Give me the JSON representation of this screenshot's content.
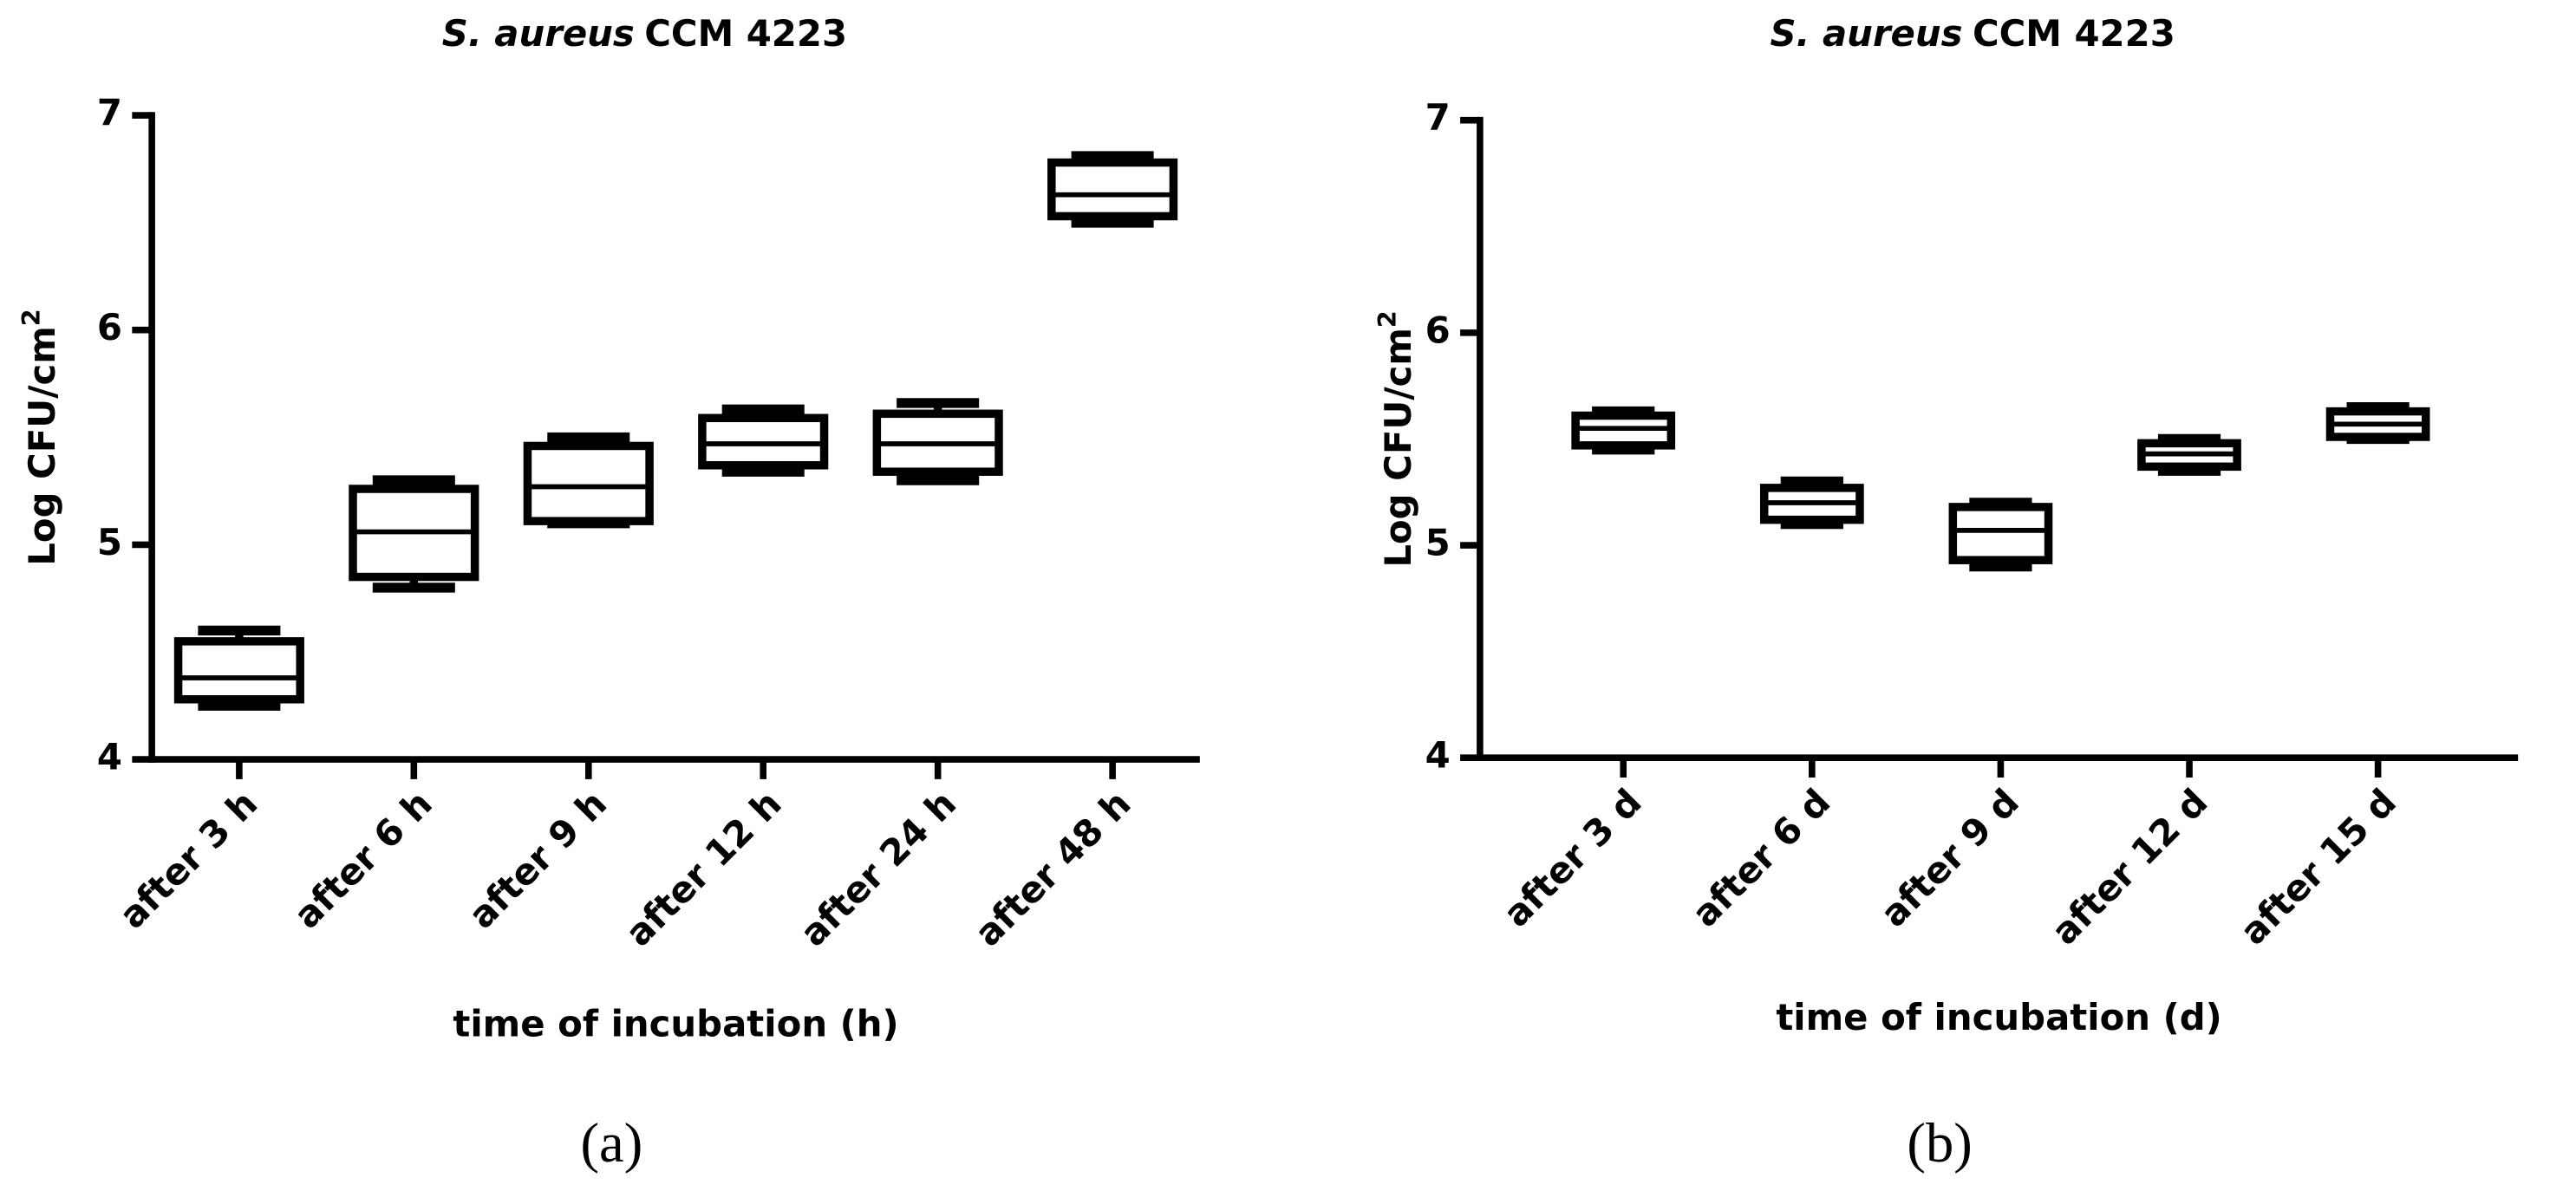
{
  "chart_data": [
    {
      "type": "box",
      "title": [
        "S. aureus",
        "CCM 4223"
      ],
      "y_label": [
        "Log CFU/cm",
        "2"
      ],
      "x_label": "time of incubation (h)",
      "panel_label": "(a)",
      "categories": [
        "after 3 h",
        "after 6 h",
        "after 9 h",
        "after 12 h",
        "after 24 h",
        "after 48 h"
      ],
      "color": "#000000",
      "min": [
        4.25,
        4.8,
        5.1,
        5.34,
        5.3,
        6.5
      ],
      "q1": [
        4.28,
        4.85,
        5.11,
        5.37,
        5.34,
        6.53
      ],
      "median": [
        4.38,
        5.06,
        5.27,
        5.47,
        5.47,
        6.63
      ],
      "q3": [
        4.55,
        5.26,
        5.46,
        5.59,
        5.61,
        6.78
      ],
      "max": [
        4.6,
        5.3,
        5.5,
        5.63,
        5.66,
        6.81
      ],
      "ylim": [
        4,
        7
      ],
      "yticks": [
        4,
        5,
        6,
        7
      ]
    },
    {
      "type": "box",
      "title": [
        "S. aureus",
        "CCM 4223"
      ],
      "y_label": [
        "Log CFU/cm",
        "2"
      ],
      "x_label": "time of incubation (d)",
      "panel_label": "(b)",
      "categories": [
        "after 3 d",
        "after 6 d",
        "after 9 d",
        "after 12 d",
        "after 15 d"
      ],
      "color": "#000000",
      "min": [
        5.45,
        5.1,
        4.9,
        5.35,
        5.5
      ],
      "q1": [
        5.47,
        5.12,
        4.93,
        5.37,
        5.51
      ],
      "median": [
        5.55,
        5.2,
        5.07,
        5.43,
        5.57
      ],
      "q3": [
        5.61,
        5.27,
        5.18,
        5.48,
        5.63
      ],
      "max": [
        5.63,
        5.3,
        5.2,
        5.5,
        5.65
      ],
      "ylim": [
        4,
        7
      ],
      "yticks": [
        4,
        5,
        6,
        7
      ]
    }
  ]
}
